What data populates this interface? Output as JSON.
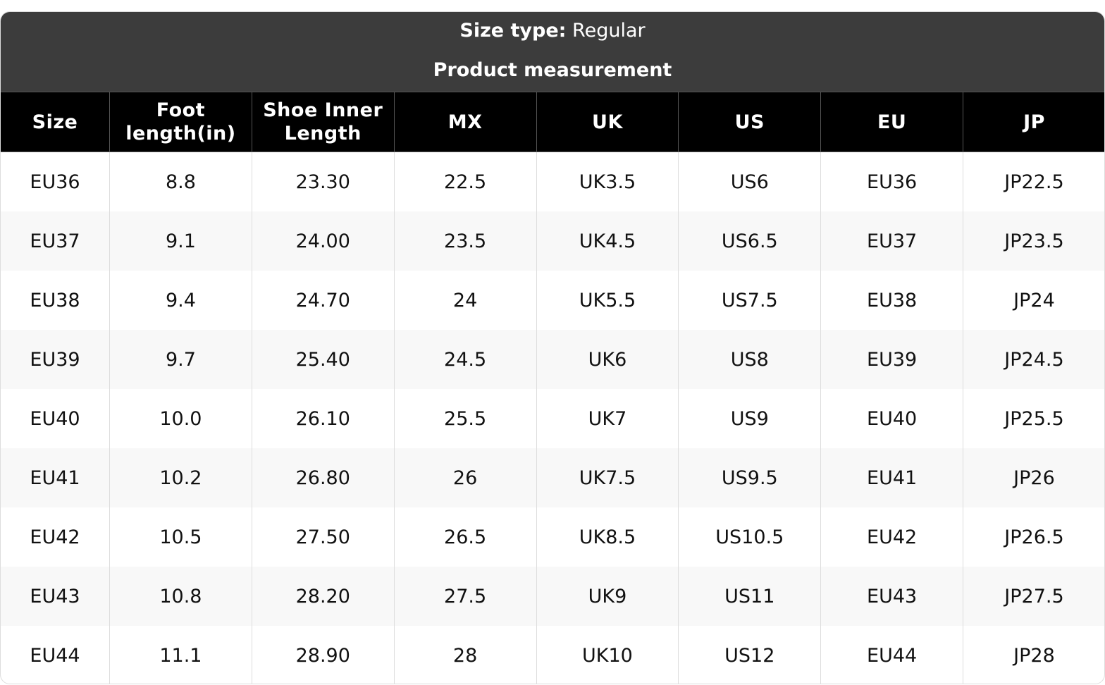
{
  "header": {
    "size_type_label": "Size type:",
    "size_type_value": "Regular",
    "title": "Product measurement"
  },
  "table": {
    "columns": [
      "Size",
      "Foot length(in)",
      "Shoe Inner Length",
      "MX",
      "UK",
      "US",
      "EU",
      "JP"
    ],
    "rows": [
      [
        "EU36",
        "8.8",
        "23.30",
        "22.5",
        "UK3.5",
        "US6",
        "EU36",
        "JP22.5"
      ],
      [
        "EU37",
        "9.1",
        "24.00",
        "23.5",
        "UK4.5",
        "US6.5",
        "EU37",
        "JP23.5"
      ],
      [
        "EU38",
        "9.4",
        "24.70",
        "24",
        "UK5.5",
        "US7.5",
        "EU38",
        "JP24"
      ],
      [
        "EU39",
        "9.7",
        "25.40",
        "24.5",
        "UK6",
        "US8",
        "EU39",
        "JP24.5"
      ],
      [
        "EU40",
        "10.0",
        "26.10",
        "25.5",
        "UK7",
        "US9",
        "EU40",
        "JP25.5"
      ],
      [
        "EU41",
        "10.2",
        "26.80",
        "26",
        "UK7.5",
        "US9.5",
        "EU41",
        "JP26"
      ],
      [
        "EU42",
        "10.5",
        "27.50",
        "26.5",
        "UK8.5",
        "US10.5",
        "EU42",
        "JP26.5"
      ],
      [
        "EU43",
        "10.8",
        "28.20",
        "27.5",
        "UK9",
        "US11",
        "EU43",
        "JP27.5"
      ],
      [
        "EU44",
        "11.1",
        "28.90",
        "28",
        "UK10",
        "US12",
        "EU44",
        "JP28"
      ]
    ]
  }
}
